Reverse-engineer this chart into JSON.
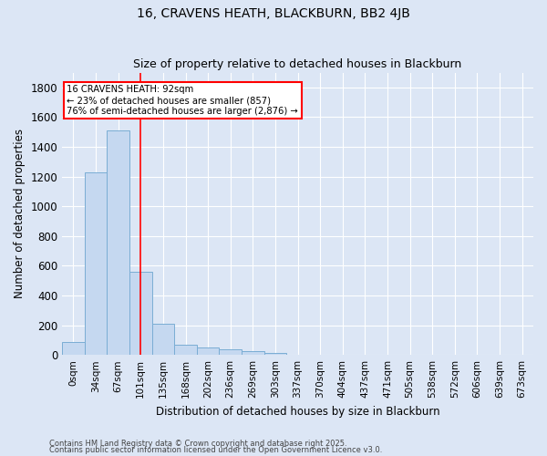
{
  "title1": "16, CRAVENS HEATH, BLACKBURN, BB2 4JB",
  "title2": "Size of property relative to detached houses in Blackburn",
  "xlabel": "Distribution of detached houses by size in Blackburn",
  "ylabel": "Number of detached properties",
  "bar_color": "#c5d8f0",
  "bar_edge_color": "#7aadd4",
  "background_color": "#dce6f5",
  "grid_color": "#ffffff",
  "fig_bg_color": "#dce6f5",
  "categories": [
    "0sqm",
    "34sqm",
    "67sqm",
    "101sqm",
    "135sqm",
    "168sqm",
    "202sqm",
    "236sqm",
    "269sqm",
    "303sqm",
    "337sqm",
    "370sqm",
    "404sqm",
    "437sqm",
    "471sqm",
    "505sqm",
    "538sqm",
    "572sqm",
    "606sqm",
    "639sqm",
    "673sqm"
  ],
  "values": [
    90,
    1230,
    1510,
    560,
    210,
    70,
    50,
    40,
    25,
    15,
    0,
    0,
    0,
    0,
    0,
    0,
    0,
    0,
    0,
    0,
    0
  ],
  "ylim": [
    0,
    1900
  ],
  "yticks": [
    0,
    200,
    400,
    600,
    800,
    1000,
    1200,
    1400,
    1600,
    1800
  ],
  "property_line_x": 3.0,
  "annotation_text": "16 CRAVENS HEATH: 92sqm\n← 23% of detached houses are smaller (857)\n76% of semi-detached houses are larger (2,876) →",
  "footer1": "Contains HM Land Registry data © Crown copyright and database right 2025.",
  "footer2": "Contains public sector information licensed under the Open Government Licence v3.0."
}
